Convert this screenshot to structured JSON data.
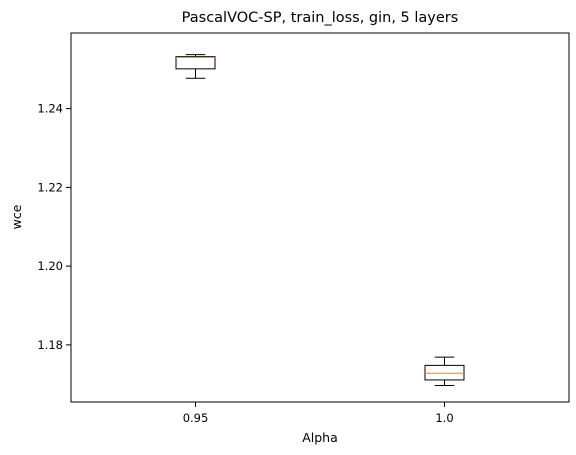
{
  "chart_data": {
    "type": "box",
    "title": "PascalVOC-SP, train_loss, gin, 5 layers",
    "xlabel": "Alpha",
    "ylabel": "wce",
    "categories": [
      "0.95",
      "1.0"
    ],
    "yticks": [
      "1.18",
      "1.20",
      "1.22",
      "1.24"
    ],
    "ylim": [
      1.1655,
      1.2592
    ],
    "grid": false,
    "boxes": [
      {
        "label": "0.95",
        "whisker_low": 1.2477,
        "q1": 1.2501,
        "median": 1.253,
        "q3": 1.2532,
        "whisker_high": 1.2537
      },
      {
        "label": "1.0",
        "whisker_low": 1.1697,
        "q1": 1.1711,
        "median": 1.1728,
        "q3": 1.1748,
        "whisker_high": 1.1769
      }
    ],
    "colors": {
      "box": "#000000",
      "median": "#ff7f0e"
    }
  }
}
